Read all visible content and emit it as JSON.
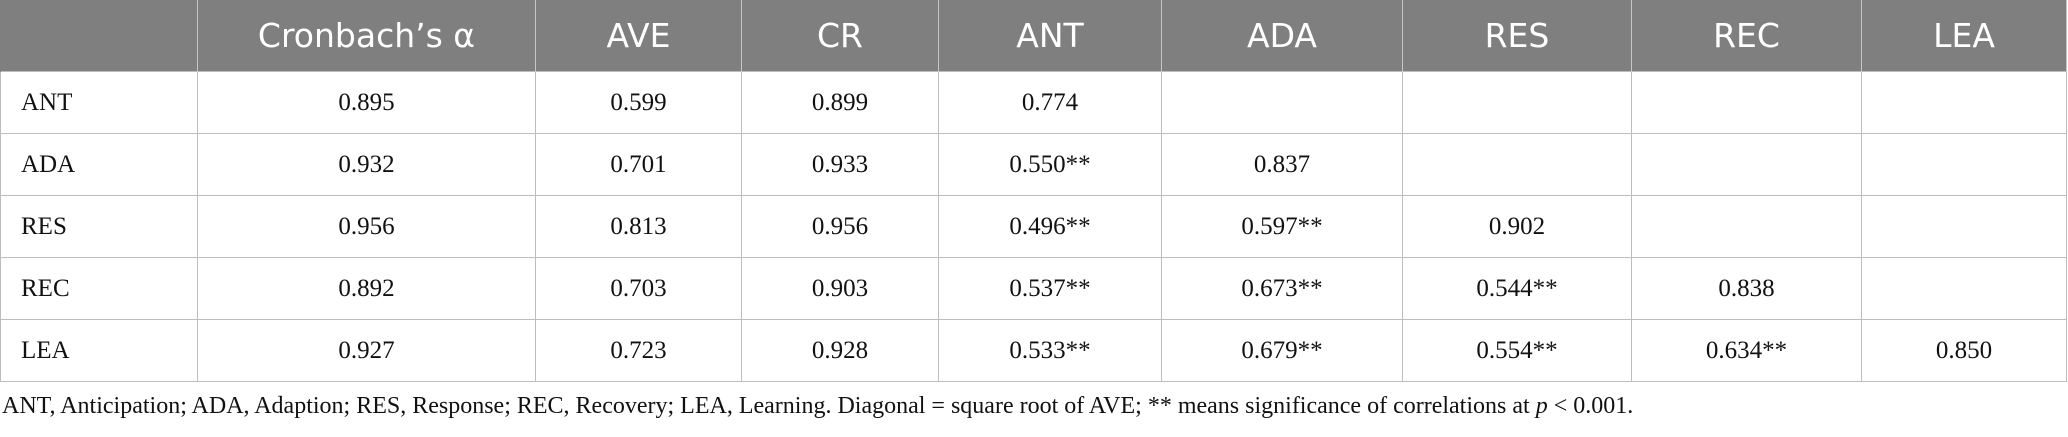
{
  "table": {
    "headers": [
      "",
      "Cronbach’s α",
      "AVE",
      "CR",
      "ANT",
      "ADA",
      "RES",
      "REC",
      "LEA"
    ],
    "rows": [
      [
        "ANT",
        "0.895",
        "0.599",
        "0.899",
        "0.774",
        "",
        "",
        "",
        ""
      ],
      [
        "ADA",
        "0.932",
        "0.701",
        "0.933",
        "0.550**",
        "0.837",
        "",
        "",
        ""
      ],
      [
        "RES",
        "0.956",
        "0.813",
        "0.956",
        "0.496**",
        "0.597**",
        "0.902",
        "",
        ""
      ],
      [
        "REC",
        "0.892",
        "0.703",
        "0.903",
        "0.537**",
        "0.673**",
        "0.544**",
        "0.838",
        ""
      ],
      [
        "LEA",
        "0.927",
        "0.723",
        "0.928",
        "0.533**",
        "0.679**",
        "0.554**",
        "0.634**",
        "0.850"
      ]
    ]
  },
  "footnote": {
    "text_before": "ANT, Anticipation; ADA, Adaption; RES, Response; REC, Recovery; LEA, Learning. Diagonal = square root of AVE; ** means significance of correlations at ",
    "italic": "p",
    "text_after": " < 0.001."
  }
}
